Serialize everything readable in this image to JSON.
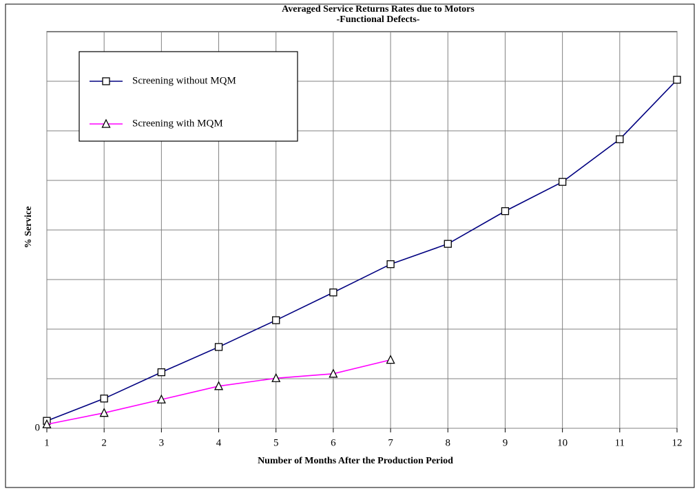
{
  "chart_data": {
    "type": "line",
    "title": "Averaged Service Returns Rates due to Motors",
    "subtitle": "-Functional Defects-",
    "x_label": "Number of Months After the Production Period",
    "y_label": "% Service",
    "x": [
      1,
      2,
      3,
      4,
      5,
      6,
      7,
      8,
      9,
      10,
      11,
      12
    ],
    "series": [
      {
        "name": "Screening without  MQM",
        "color": "#000080",
        "marker": "square",
        "values": [
          0.15,
          0.6,
          1.13,
          1.64,
          2.18,
          2.74,
          3.31,
          3.72,
          4.38,
          4.97,
          5.83,
          7.03
        ]
      },
      {
        "name": "Screening with MQM",
        "color": "#ff00ff",
        "marker": "triangle",
        "values": [
          0.08,
          0.31,
          0.58,
          0.85,
          1.01,
          1.1,
          1.38,
          null,
          null,
          null,
          null,
          null
        ]
      }
    ],
    "xlim": [
      1,
      12
    ],
    "xticks": [
      1,
      2,
      3,
      4,
      5,
      6,
      7,
      8,
      9,
      10,
      11,
      12
    ],
    "ylim": [
      0,
      8
    ],
    "yticks": [
      0,
      {
        "value": 1,
        "label": null
      },
      {
        "value": 2,
        "label": null
      },
      {
        "value": 3,
        "label": null
      },
      {
        "value": 4,
        "label": null
      },
      {
        "value": 5,
        "label": null
      },
      {
        "value": 6,
        "label": null
      },
      {
        "value": 7,
        "label": null
      }
    ],
    "grid": true,
    "legend": "upper left"
  }
}
